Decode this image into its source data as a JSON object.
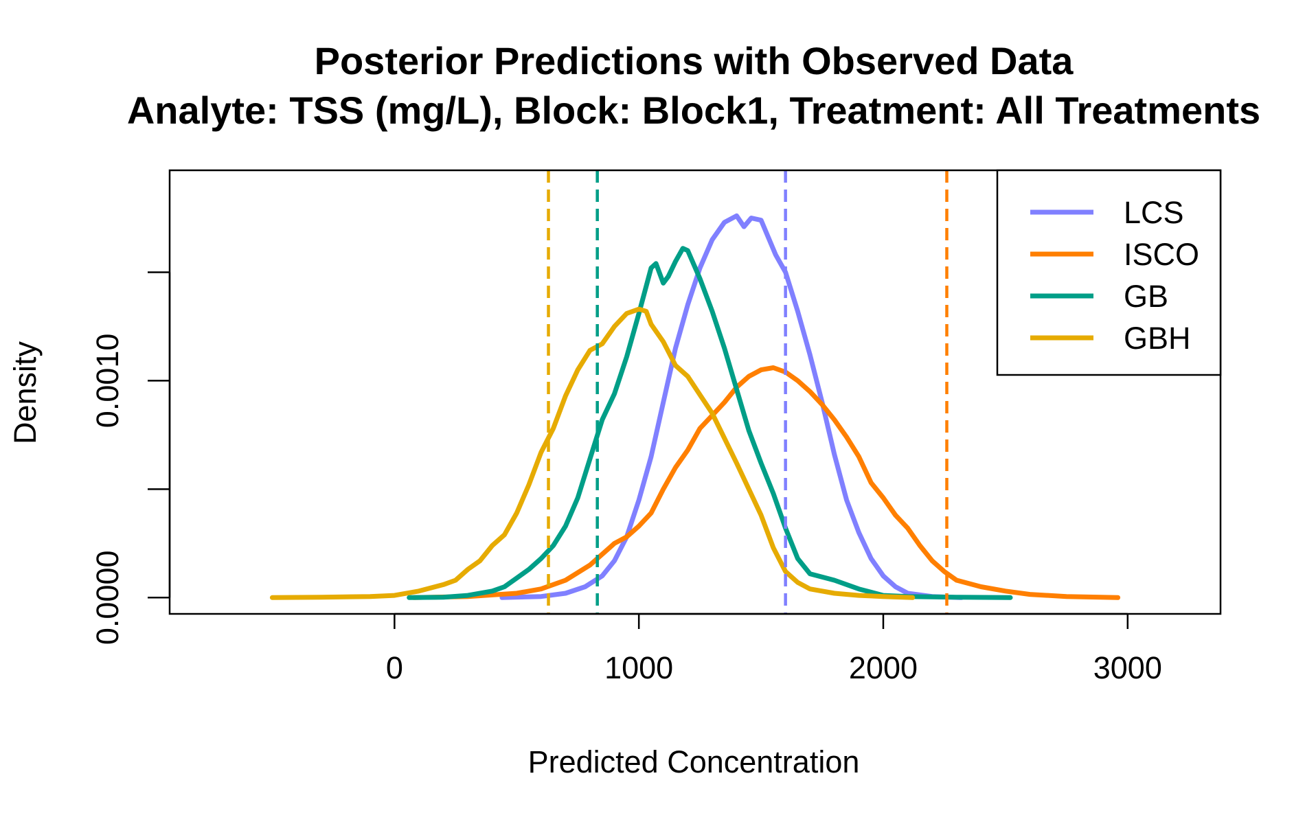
{
  "chart_data": {
    "type": "line",
    "title": "Posterior Predictions with Observed Data",
    "subtitle": "Analyte: TSS (mg/L), Block: Block1, Treatment: All Treatments",
    "xlabel": "Predicted Concentration",
    "ylabel": "Density",
    "xlim": [
      -920,
      3380
    ],
    "ylim": [
      -7.5e-05,
      0.00197
    ],
    "x_ticks": [
      0,
      1000,
      2000,
      3000
    ],
    "x_tick_labels": [
      "0",
      "1000",
      "2000",
      "3000"
    ],
    "y_ticks": [
      0.0,
      0.0005,
      0.001,
      0.0015
    ],
    "y_tick_labels": [
      "0.0000",
      "",
      "0.0010",
      ""
    ],
    "grid": false,
    "legend_position": "top-right",
    "series": [
      {
        "name": "LCS",
        "color": "#8080FF",
        "observed": 1600,
        "x": [
          440,
          600,
          700,
          780,
          850,
          900,
          950,
          1000,
          1050,
          1100,
          1150,
          1200,
          1250,
          1300,
          1350,
          1400,
          1430,
          1460,
          1500,
          1530,
          1560,
          1600,
          1650,
          1700,
          1750,
          1800,
          1850,
          1900,
          1950,
          2000,
          2050,
          2100,
          2200,
          2320
        ],
        "y": [
          0.0,
          5e-06,
          2e-05,
          5e-05,
          0.0001,
          0.00017,
          0.00028,
          0.00045,
          0.00065,
          0.0009,
          0.00115,
          0.00135,
          0.00152,
          0.00165,
          0.00173,
          0.00176,
          0.00171,
          0.00175,
          0.00174,
          0.00166,
          0.00158,
          0.0015,
          0.00132,
          0.00112,
          0.0009,
          0.00066,
          0.00045,
          0.0003,
          0.00018,
          0.0001,
          5e-05,
          2e-05,
          5e-06,
          0.0
        ]
      },
      {
        "name": "ISCO",
        "color": "#FF7F00",
        "observed": 2260,
        "x": [
          80,
          300,
          500,
          600,
          700,
          800,
          850,
          900,
          950,
          1000,
          1050,
          1100,
          1150,
          1200,
          1250,
          1300,
          1350,
          1400,
          1450,
          1500,
          1550,
          1600,
          1650,
          1700,
          1750,
          1800,
          1850,
          1900,
          1950,
          2000,
          2050,
          2100,
          2150,
          2200,
          2250,
          2300,
          2400,
          2500,
          2600,
          2750,
          2960
        ],
        "y": [
          0.0,
          5e-06,
          2e-05,
          4e-05,
          8e-05,
          0.00015,
          0.0002,
          0.00025,
          0.00028,
          0.00033,
          0.00039,
          0.0005,
          0.0006,
          0.00068,
          0.00078,
          0.00084,
          0.0009,
          0.00097,
          0.00102,
          0.00105,
          0.00106,
          0.00104,
          0.001,
          0.00095,
          0.00089,
          0.00082,
          0.00074,
          0.00065,
          0.00053,
          0.00046,
          0.00038,
          0.00032,
          0.00024,
          0.00017,
          0.00012,
          8e-05,
          5e-05,
          3e-05,
          1.5e-05,
          5e-06,
          0.0
        ]
      },
      {
        "name": "GB",
        "color": "#009E87",
        "observed": 830,
        "x": [
          60,
          200,
          300,
          400,
          450,
          500,
          550,
          600,
          650,
          700,
          750,
          800,
          850,
          900,
          950,
          1000,
          1050,
          1070,
          1100,
          1120,
          1150,
          1180,
          1200,
          1250,
          1300,
          1350,
          1400,
          1450,
          1500,
          1550,
          1600,
          1650,
          1700,
          1800,
          1900,
          2000,
          2100,
          2300,
          2520
        ],
        "y": [
          0.0,
          2e-06,
          1e-05,
          3e-05,
          5e-05,
          9e-05,
          0.00013,
          0.00018,
          0.00024,
          0.00033,
          0.00046,
          0.00064,
          0.00082,
          0.00094,
          0.00111,
          0.00131,
          0.00152,
          0.00154,
          0.00145,
          0.00148,
          0.00155,
          0.00161,
          0.0016,
          0.00147,
          0.00132,
          0.00115,
          0.00096,
          0.00077,
          0.00062,
          0.00048,
          0.00032,
          0.00018,
          0.00011,
          8e-05,
          4e-05,
          1e-05,
          5e-06,
          2e-06,
          0.0
        ]
      },
      {
        "name": "GBH",
        "color": "#E6AB02",
        "observed": 630,
        "x": [
          -500,
          -300,
          -100,
          0,
          100,
          200,
          250,
          300,
          350,
          400,
          450,
          500,
          550,
          600,
          650,
          700,
          750,
          800,
          850,
          900,
          950,
          1000,
          1030,
          1050,
          1100,
          1150,
          1200,
          1300,
          1400,
          1500,
          1550,
          1600,
          1650,
          1700,
          1800,
          1900,
          2000,
          2120
        ],
        "y": [
          0.0,
          2e-06,
          5e-06,
          1e-05,
          3e-05,
          6e-05,
          8e-05,
          0.00013,
          0.00017,
          0.00024,
          0.00029,
          0.00039,
          0.00052,
          0.00067,
          0.00078,
          0.00093,
          0.00105,
          0.00114,
          0.00117,
          0.00125,
          0.00131,
          0.00133,
          0.00132,
          0.00126,
          0.00118,
          0.00107,
          0.00102,
          0.00085,
          0.00062,
          0.00038,
          0.00023,
          0.00012,
          7e-05,
          4e-05,
          2e-05,
          1e-05,
          5e-06,
          0.0
        ]
      }
    ]
  }
}
